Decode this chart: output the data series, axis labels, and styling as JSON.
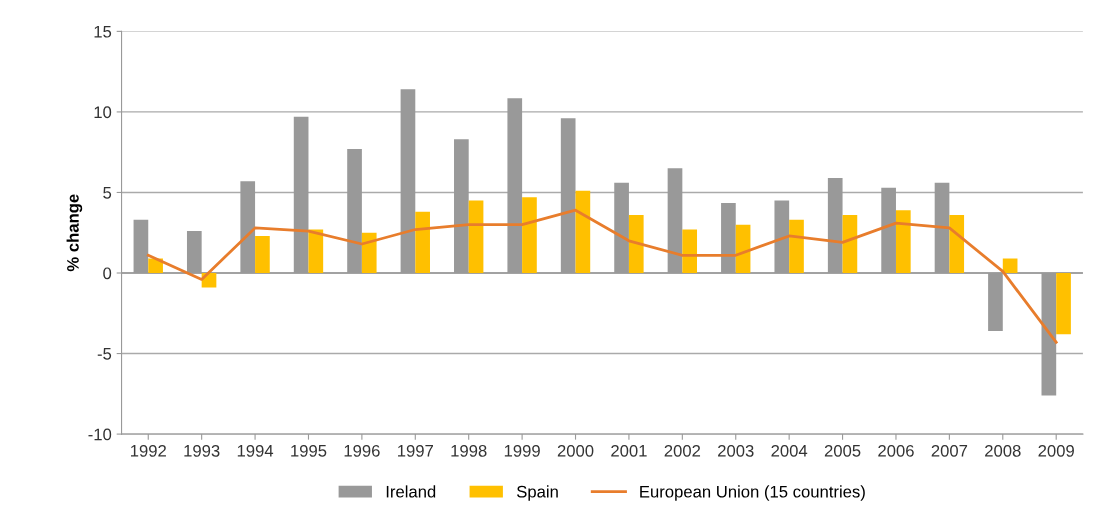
{
  "chart_data": {
    "type": "bar",
    "ylabel": "% change",
    "categories": [
      "1992",
      "1993",
      "1994",
      "1995",
      "1996",
      "1997",
      "1998",
      "1999",
      "2000",
      "2001",
      "2002",
      "2003",
      "2004",
      "2005",
      "2006",
      "2007",
      "2008",
      "2009"
    ],
    "series": [
      {
        "name": "Ireland",
        "color": "#999999",
        "values": [
          3.3,
          2.6,
          5.7,
          9.7,
          7.7,
          11.4,
          8.3,
          10.85,
          9.6,
          5.6,
          6.5,
          4.35,
          4.5,
          5.9,
          5.3,
          5.6,
          -3.6,
          -7.6
        ]
      },
      {
        "name": "Spain",
        "color": "#ffc000",
        "values": [
          0.9,
          -0.9,
          2.3,
          2.7,
          2.5,
          3.8,
          4.5,
          4.7,
          5.1,
          3.6,
          2.7,
          3.0,
          3.3,
          3.6,
          3.9,
          3.6,
          0.9,
          -3.8
        ]
      },
      {
        "name": "European Union (15 countries)",
        "type": "line",
        "color": "#e87d2c",
        "values": [
          1.1,
          -0.4,
          2.8,
          2.6,
          1.8,
          2.7,
          3.0,
          3.0,
          3.9,
          2.0,
          1.1,
          1.1,
          2.3,
          1.9,
          3.1,
          2.8,
          0.1,
          -4.3
        ]
      }
    ],
    "ylim": [
      -10,
      15
    ],
    "yticks": [
      -10,
      -5,
      0,
      5,
      10,
      15
    ],
    "grid": "y",
    "legend": "bottom"
  }
}
